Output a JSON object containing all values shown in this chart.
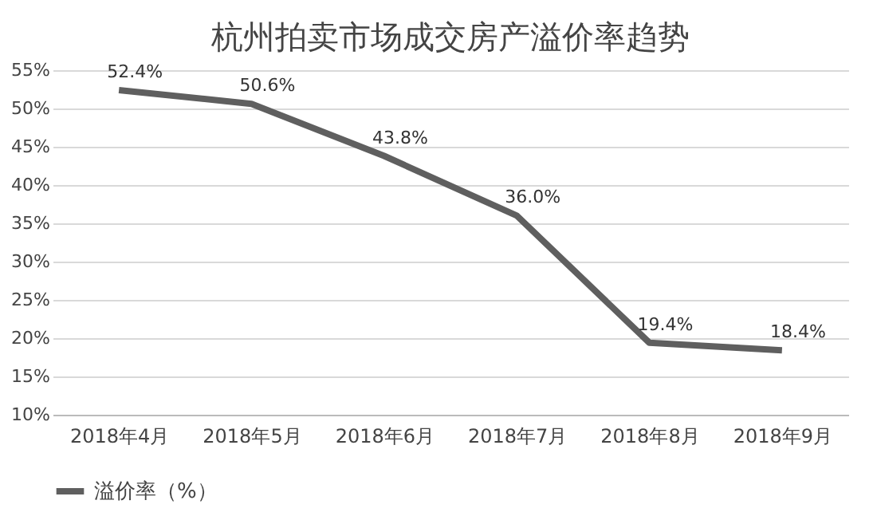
{
  "chart_data": {
    "type": "line",
    "title": "杭州拍卖市场成交房产溢价率趋势",
    "categories": [
      "2018年4月",
      "2018年5月",
      "2018年6月",
      "2018年7月",
      "2018年8月",
      "2018年9月"
    ],
    "series": [
      {
        "name": "溢价率（%）",
        "color": "#5f5f5f",
        "values": [
          52.4,
          50.6,
          43.8,
          36.0,
          19.4,
          18.4
        ],
        "value_labels": [
          "52.4%",
          "50.6%",
          "43.8%",
          "36.0%",
          "19.4%",
          "18.4%"
        ]
      }
    ],
    "ylim": [
      10,
      55
    ],
    "yticks": [
      {
        "value": 10,
        "label": "10%"
      },
      {
        "value": 15,
        "label": "15%"
      },
      {
        "value": 20,
        "label": "20%"
      },
      {
        "value": 25,
        "label": "25%"
      },
      {
        "value": 30,
        "label": "30%"
      },
      {
        "value": 35,
        "label": "35%"
      },
      {
        "value": 40,
        "label": "40%"
      },
      {
        "value": 45,
        "label": "45%"
      },
      {
        "value": 50,
        "label": "50%"
      },
      {
        "value": 55,
        "label": "55%"
      }
    ],
    "grid": "y",
    "legend": "bottom",
    "marker": "none",
    "line_style": "solid"
  }
}
